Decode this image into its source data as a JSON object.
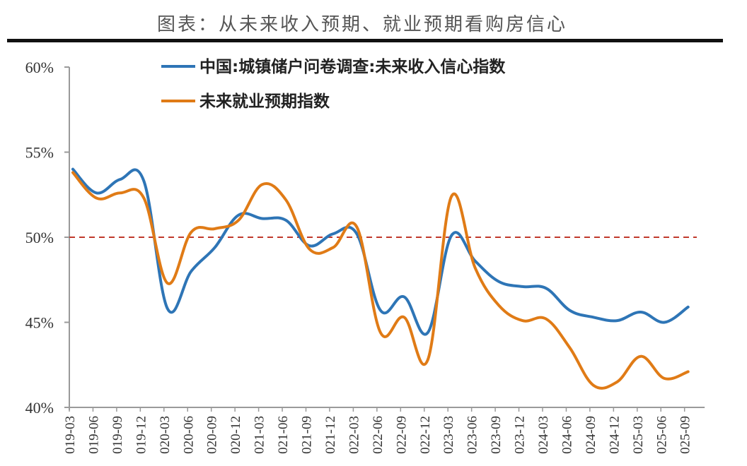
{
  "header": {
    "title": "图表：从未来收入预期、就业预期看购房信心"
  },
  "legend": {
    "items": [
      {
        "label": "中国:城镇储户问卷调查:未来收入信心指数",
        "color": "#2E75B6"
      },
      {
        "label": "未来就业预期指数",
        "color": "#E07B16"
      }
    ]
  },
  "axes": {
    "y_ticks": [
      "60%",
      "55%",
      "50%",
      "45%",
      "40%"
    ],
    "reference_line": {
      "value": 50,
      "color": "#C0392B",
      "style": "dashed"
    }
  },
  "chart_data": {
    "type": "line",
    "title": "图表：从未来收入预期、就业预期看购房信心",
    "xlabel": "",
    "ylabel": "",
    "ylim": [
      40,
      60
    ],
    "y_unit": "%",
    "grid": false,
    "legend_position": "top-inside",
    "categories": [
      "019-03",
      "019-06",
      "019-09",
      "019-12",
      "020-03",
      "020-06",
      "020-09",
      "020-12",
      "021-03",
      "021-06",
      "021-09",
      "021-12",
      "022-03",
      "022-06",
      "022-09",
      "022-12",
      "023-03",
      "023-06",
      "023-09",
      "023-12",
      "024-03",
      "024-06",
      "024-09",
      "024-12",
      "025-03",
      "025-06",
      "025-09"
    ],
    "series": [
      {
        "name": "中国:城镇储户问卷调查:未来收入信心指数",
        "color": "#2E75B6",
        "values": [
          54.0,
          52.6,
          53.4,
          53.3,
          45.8,
          48.0,
          49.4,
          51.3,
          51.1,
          51.0,
          49.5,
          50.2,
          50.2,
          45.7,
          46.5,
          44.4,
          50.1,
          48.6,
          47.4,
          47.1,
          47.0,
          45.7,
          45.3,
          45.1,
          45.6,
          45.0,
          45.9
        ]
      },
      {
        "name": "未来就业预期指数",
        "color": "#E07B16",
        "values": [
          53.8,
          52.3,
          52.6,
          52.3,
          47.3,
          50.3,
          50.5,
          51.0,
          53.1,
          52.2,
          49.3,
          49.4,
          50.6,
          44.4,
          45.3,
          42.8,
          52.4,
          48.2,
          46.0,
          45.1,
          45.2,
          43.5,
          41.3,
          41.5,
          43.0,
          41.7,
          42.1
        ]
      }
    ],
    "annotations": [
      {
        "type": "hline",
        "y": 50,
        "style": "dashed",
        "color": "#C0392B"
      }
    ]
  }
}
